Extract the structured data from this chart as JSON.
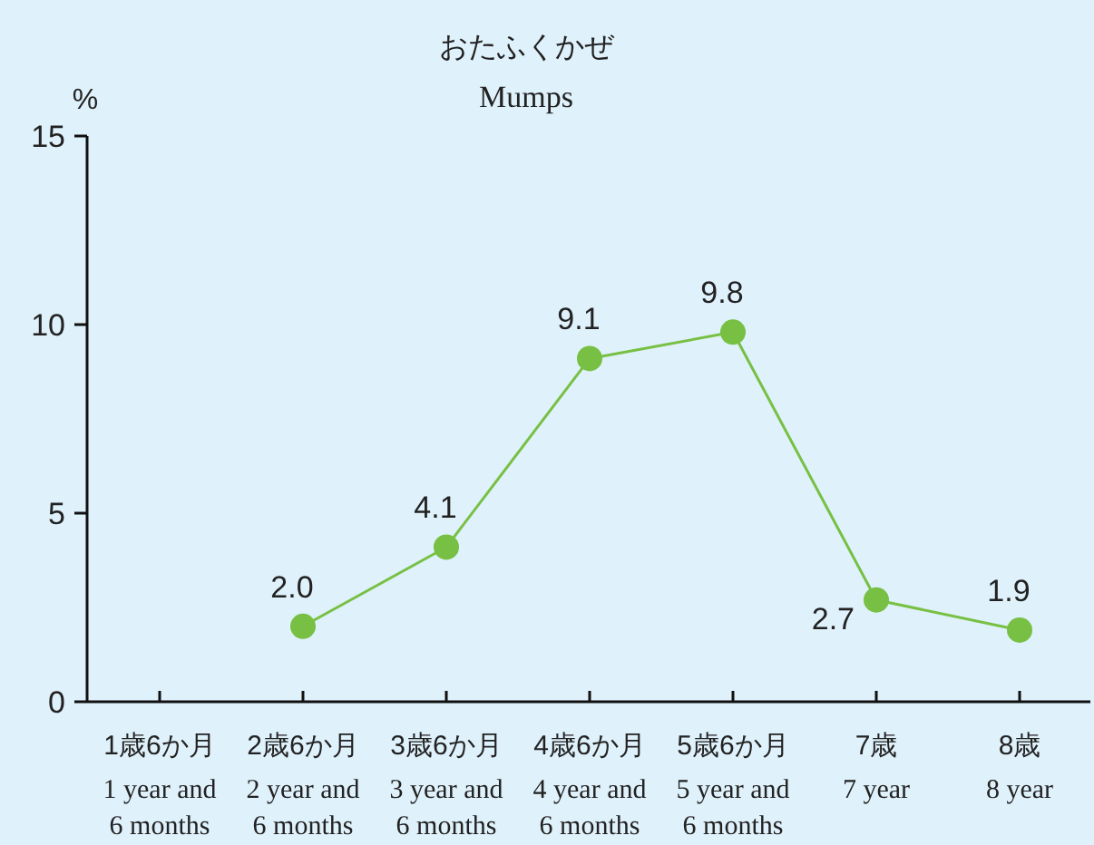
{
  "chart_data": {
    "type": "line",
    "title": "おたふくかぜ",
    "subtitle": "Mumps",
    "ylabel": "%",
    "categories": [
      "1歳6か月 1 year and 6 months",
      "2歳6か月 2 year and 6 months",
      "3歳6か月 3 year and 6 months",
      "4歳6か月 4 year and 6 months",
      "5歳6か月 5 year and 6 months",
      "7歳 7 year",
      "8歳 8 year"
    ],
    "series": [
      {
        "color": "#77c043",
        "values": [
          null,
          2.0,
          4.1,
          9.1,
          9.8,
          2.7,
          1.9
        ],
        "value_labels": [
          null,
          "2.0",
          "4.1",
          "9.1",
          "9.8",
          "2.7",
          "1.9"
        ]
      }
    ],
    "ylim": [
      0,
      15
    ],
    "yticks": [
      0,
      5,
      10,
      15
    ],
    "marker": "circle",
    "line_style": "solid"
  }
}
